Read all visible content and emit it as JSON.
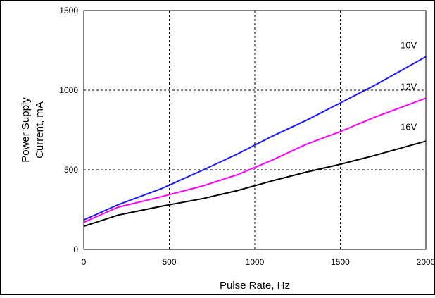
{
  "chart_data": {
    "type": "line",
    "xlabel": "Pulse Rate, Hz",
    "ylabel_lines": [
      "Power Supply",
      "Current, mA"
    ],
    "xlim": [
      0,
      2000
    ],
    "ylim": [
      0,
      1500
    ],
    "x_ticks": [
      0,
      500,
      1000,
      1500,
      2000
    ],
    "y_ticks": [
      0,
      500,
      1000,
      1500
    ],
    "grid": true,
    "grid_style": "dashed",
    "legend": "inline-labels",
    "series": [
      {
        "name": "10V",
        "color": "#1a1aff",
        "x": [
          0,
          200,
          450,
          700,
          900,
          1100,
          1300,
          1500,
          1700,
          2000
        ],
        "y": [
          185,
          280,
          380,
          500,
          600,
          710,
          810,
          920,
          1030,
          1210
        ]
      },
      {
        "name": "12V",
        "color": "#ff00ff",
        "x": [
          0,
          200,
          450,
          700,
          900,
          1100,
          1300,
          1500,
          1700,
          2000
        ],
        "y": [
          170,
          265,
          330,
          400,
          470,
          560,
          660,
          740,
          830,
          950
        ]
      },
      {
        "name": "16V",
        "color": "#000000",
        "x": [
          0,
          200,
          450,
          700,
          900,
          1100,
          1300,
          1500,
          1700,
          2000
        ],
        "y": [
          145,
          215,
          270,
          320,
          370,
          430,
          485,
          535,
          590,
          680
        ]
      }
    ]
  }
}
